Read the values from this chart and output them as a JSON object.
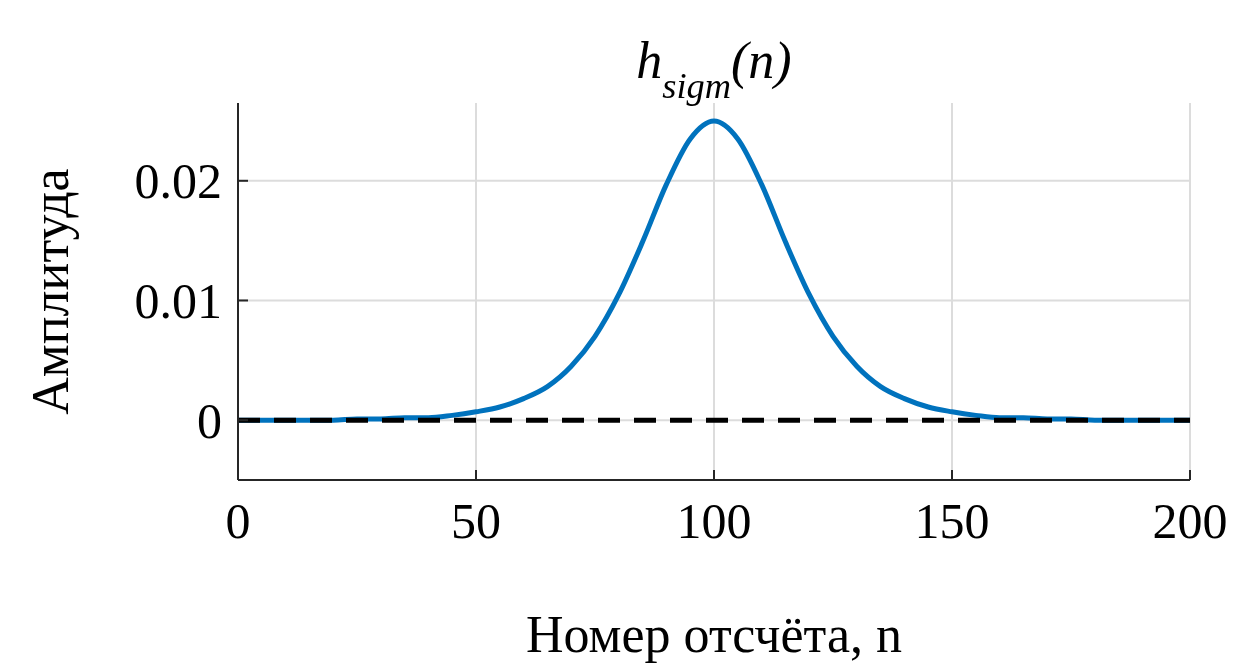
{
  "chart_data": {
    "type": "line",
    "title": "h$_{sigm}$(n)",
    "xlabel": "Номер отсчёта, n",
    "ylabel": "Амплитуда",
    "x": [
      0,
      5,
      10,
      15,
      20,
      25,
      30,
      35,
      40,
      45,
      50,
      55,
      60,
      65,
      70,
      75,
      80,
      85,
      90,
      95,
      100,
      105,
      110,
      115,
      120,
      125,
      130,
      135,
      140,
      145,
      150,
      155,
      160,
      165,
      170,
      175,
      180,
      185,
      190,
      195,
      200
    ],
    "series": [
      {
        "color": "#0072bd",
        "values": [
          0,
          0,
          0,
          0,
          0,
          0.0001,
          0.0001,
          0.0002,
          0.0002,
          0.0004,
          0.0007,
          0.0011,
          0.0018,
          0.0028,
          0.0045,
          0.007,
          0.0105,
          0.0149,
          0.0197,
          0.0235,
          0.025,
          0.0235,
          0.0197,
          0.0149,
          0.0105,
          0.007,
          0.0045,
          0.0028,
          0.0018,
          0.0011,
          0.0007,
          0.0004,
          0.0002,
          0.0002,
          0.0001,
          0.0001,
          0,
          0,
          0,
          0,
          0
        ]
      }
    ],
    "xlim": [
      0,
      200
    ],
    "xticks": [
      0,
      50,
      100,
      150,
      200
    ],
    "ylim": [
      -0.005,
      0.0265
    ],
    "yticks": [
      0,
      0.01,
      0.02
    ],
    "ref_lines": [
      {
        "axis": "y",
        "value": 0,
        "color": "#000000",
        "line_style": "dashed"
      }
    ],
    "grid": true,
    "marker": "none",
    "line_style": "solid"
  }
}
